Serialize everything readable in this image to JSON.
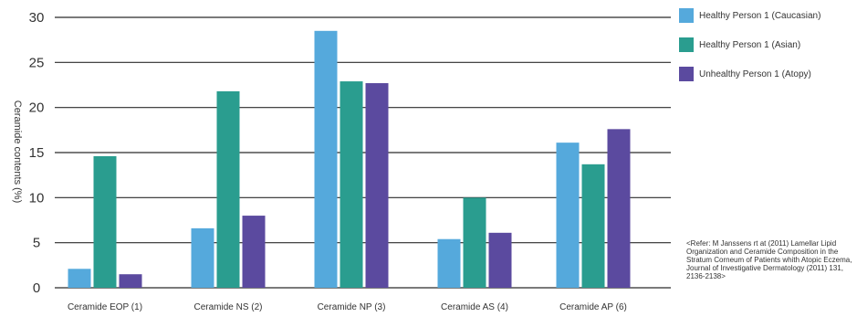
{
  "chart_data": {
    "type": "bar",
    "ylabel": "Ceramide contents (%)",
    "ylim": [
      0,
      30
    ],
    "yticks": [
      0,
      5,
      10,
      15,
      20,
      25,
      30
    ],
    "grid": true,
    "legend_position": "top-right",
    "categories": [
      "Ceramide EOP (1)",
      "Ceramide NS (2)",
      "Ceramide NP (3)",
      "Ceramide AS (4)",
      "Ceramide AP (6)"
    ],
    "series": [
      {
        "name": "Healthy Person 1 (Caucasian)",
        "color": "#55a9dc",
        "values": [
          2.1,
          6.6,
          28.5,
          5.4,
          16.1
        ]
      },
      {
        "name": "Healthy Person 1 (Asian)",
        "color": "#2a9d8f",
        "values": [
          14.6,
          21.8,
          22.9,
          10.0,
          13.7
        ]
      },
      {
        "name": "Unhealthy Person 1 (Atopy)",
        "color": "#5b4a9f",
        "values": [
          1.5,
          8.0,
          22.7,
          6.1,
          17.6
        ]
      }
    ]
  },
  "note": "<Refer: M Janssens rt at (2011) Lamellar Lipid Organization and Ceramide Composition in the Stratum Corneum of Patients whith Atopic Eczema, Journal of Investigative Dermatology (2011) 131, 2136-2138>"
}
